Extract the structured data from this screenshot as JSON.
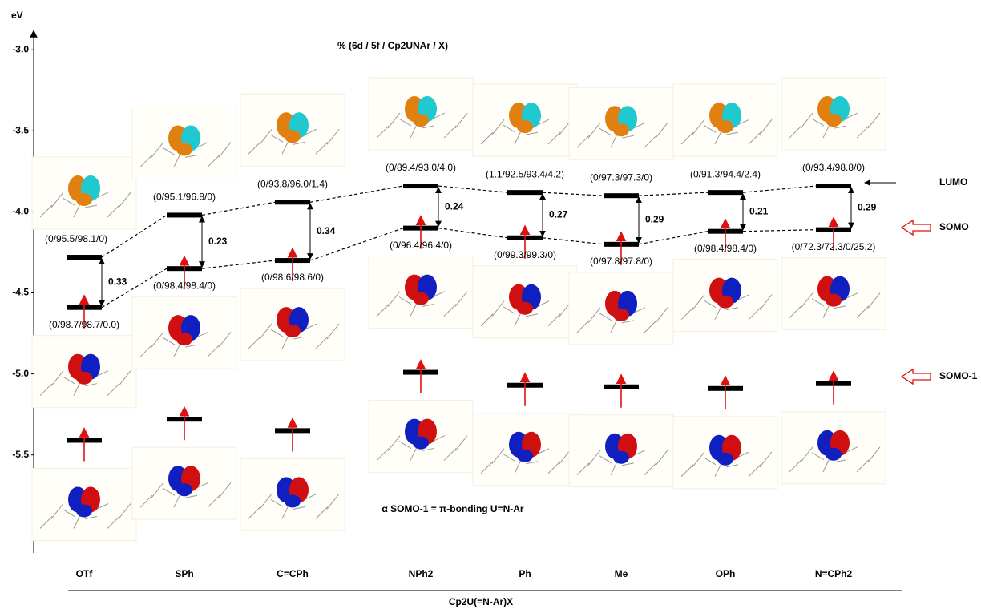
{
  "chart_data": {
    "type": "energy-levels",
    "title": "% (6d / 5f / Cp2UNAr / X)",
    "ylabel": "eV",
    "xlabel": "Cp2U(=N-Ar)X",
    "annotation": "α SOMO-1 = π-bonding U=N-Ar",
    "categories": [
      "OTf",
      "SPh",
      "C=CPh",
      "NPh2",
      "Ph",
      "Me",
      "OPh",
      "N=CPh2"
    ],
    "series": [
      {
        "name": "LUMO",
        "color": "#000000",
        "values": [
          -4.28,
          -4.02,
          -3.94,
          -3.84,
          -3.88,
          -3.9,
          -3.88,
          -3.84
        ],
        "labels": [
          "(0/95.5/98.1/0)",
          "(0/95.1/96.8/0)",
          "(0/93.8/96.0/1.4)",
          "(0/89.4/93.0/4.0)",
          "(1.1/92.5/93.4/4.2)",
          "(0/97.3/97.3/0)",
          "(0/91.3/94.4/2.4)",
          "(0/93.4/98.8/0)"
        ]
      },
      {
        "name": "SOMO",
        "color": "#e01010",
        "values": [
          -4.59,
          -4.35,
          -4.3,
          -4.1,
          -4.16,
          -4.2,
          -4.12,
          -4.11
        ],
        "labels": [
          "(0/98.7/98.7/0.0)",
          "(0/98.4/98.4/0)",
          "(0/98.6/98.6/0)",
          "(0/96.4/96.4/0)",
          "(0/99.3/99.3/0)",
          "(0/97.8/97.8/0)",
          "(0/98.4/98.4/0)",
          "(0/72.3/72.3/0/25.2)"
        ]
      },
      {
        "name": "SOMO-1",
        "color": "#e01010",
        "values": [
          -5.41,
          -5.28,
          -5.35,
          -4.99,
          -5.07,
          -5.08,
          -5.09,
          -5.06
        ]
      }
    ],
    "gaps": [
      0.33,
      0.23,
      0.34,
      0.24,
      0.27,
      0.29,
      0.21,
      0.29
    ],
    "ylim": [
      -6.1,
      -2.9
    ],
    "yticks": [
      {
        "value": -3,
        "label": "-3.0"
      },
      -3.5,
      {
        "value": -4,
        "label": "-4.0"
      },
      -4.5,
      {
        "value": -5,
        "label": "-5.0"
      },
      -5.5
    ]
  }
}
